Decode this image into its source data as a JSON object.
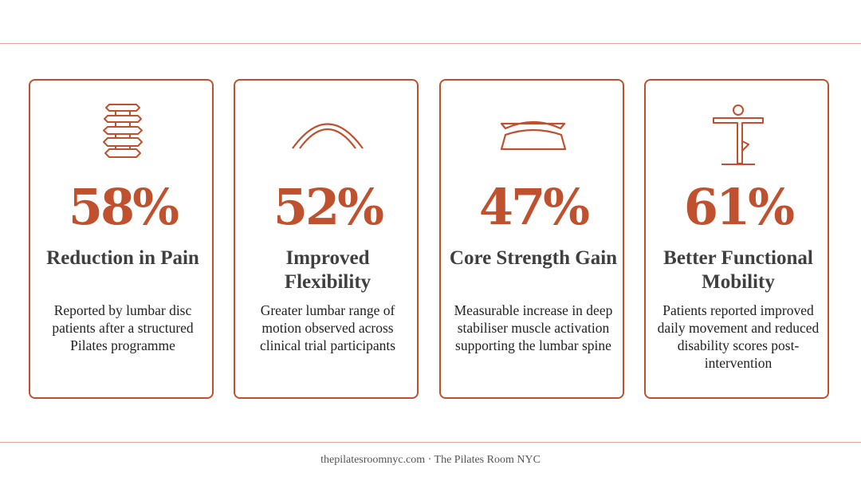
{
  "accent_color": "#c0512f",
  "cards": [
    {
      "icon": "spine-icon",
      "value": "58%",
      "title": "Reduction in Pain",
      "description": "Reported by lumbar disc patients after a structured Pilates programme"
    },
    {
      "icon": "arc-flexibility-icon",
      "value": "52%",
      "title": "Improved Flexibility",
      "description": "Greater lumbar range of motion observed across clinical trial participants"
    },
    {
      "icon": "core-band-icon",
      "value": "47%",
      "title": "Core Strength Gain",
      "description": "Measurable increase in deep stabiliser muscle activation supporting the lumbar spine"
    },
    {
      "icon": "balance-pose-icon",
      "value": "61%",
      "title": "Better Functional Mobility",
      "description": "Patients reported improved daily movement and reduced disability scores post-intervention"
    }
  ],
  "footer": {
    "text": "thepilatesroomnyc.com · The Pilates Room NYC"
  }
}
